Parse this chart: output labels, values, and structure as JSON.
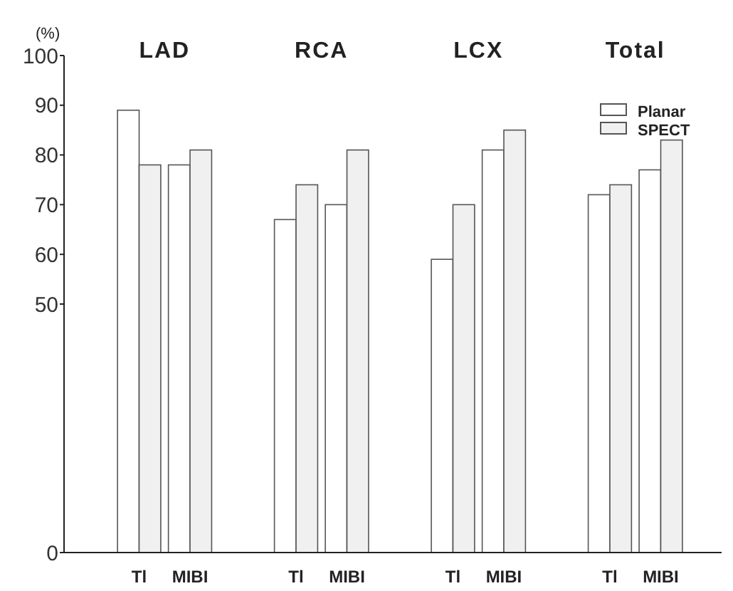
{
  "chart_data": {
    "type": "bar",
    "ylabel": "(%)",
    "categories": [
      "Tl",
      "MIBI",
      "Tl",
      "MIBI",
      "Tl",
      "MIBI",
      "Tl",
      "MIBI"
    ],
    "annotations": [
      "LAD",
      "RCA",
      "LCX",
      "Total"
    ],
    "series": [
      {
        "name": "Planar",
        "color": "#ffffff",
        "values": [
          89,
          78,
          67,
          70,
          59,
          81,
          72,
          77
        ]
      },
      {
        "name": "SPECT",
        "color": "#f0f0f0",
        "values": [
          78,
          81,
          74,
          81,
          70,
          85,
          74,
          83
        ]
      }
    ],
    "ylim": [
      0,
      100
    ],
    "yticks": [
      0,
      50,
      60,
      70,
      80,
      90,
      100
    ],
    "grid": false,
    "legend": "top right"
  }
}
